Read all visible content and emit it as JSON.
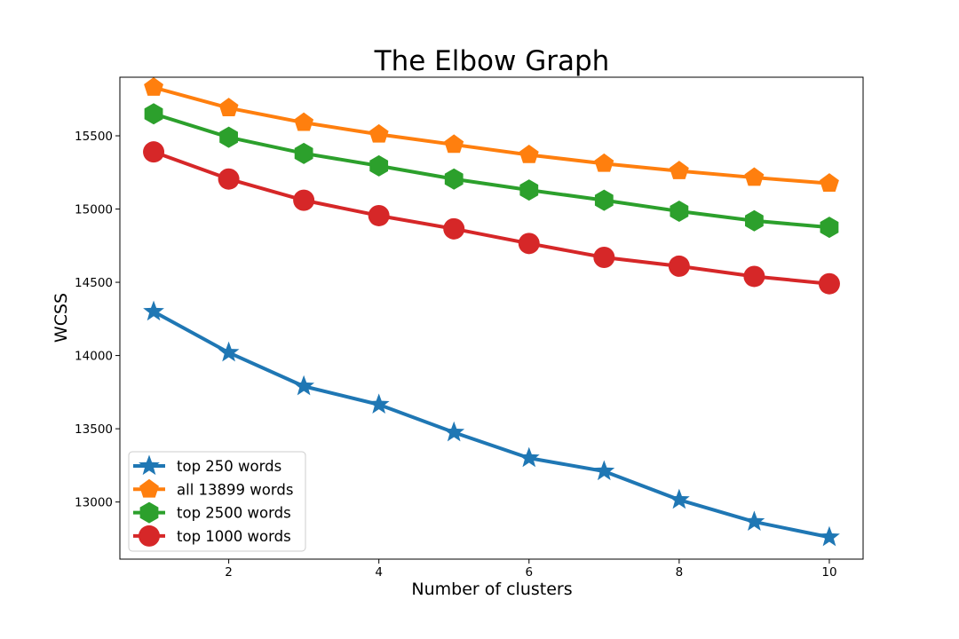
{
  "chart_data": {
    "type": "line",
    "title": "The Elbow Graph",
    "xlabel": "Number of clusters",
    "ylabel": "WCSS",
    "x": [
      1,
      2,
      3,
      4,
      5,
      6,
      7,
      8,
      9,
      10
    ],
    "xlim": [
      0.55,
      10.45
    ],
    "ylim": [
      12610,
      15900
    ],
    "xticks": [
      2,
      4,
      6,
      8,
      10
    ],
    "yticks": [
      13000,
      13500,
      14000,
      14500,
      15000,
      15500
    ],
    "grid": false,
    "legend_position": "lower-left",
    "series": [
      {
        "name": "top 250 words",
        "color": "#1f77b4",
        "marker": "star",
        "values": [
          14300,
          14020,
          13790,
          13665,
          13475,
          13300,
          13210,
          13015,
          12865,
          12760
        ]
      },
      {
        "name": "all 13899 words",
        "color": "#ff7f0e",
        "marker": "pentagon",
        "values": [
          15830,
          15690,
          15590,
          15510,
          15440,
          15370,
          15310,
          15260,
          15215,
          15175
        ]
      },
      {
        "name": "top 2500 words",
        "color": "#2ca02c",
        "marker": "hexagon",
        "values": [
          15650,
          15490,
          15380,
          15295,
          15205,
          15130,
          15060,
          14985,
          14920,
          14875
        ]
      },
      {
        "name": "top 1000 words",
        "color": "#d62728",
        "marker": "circle",
        "values": [
          15390,
          15205,
          15060,
          14955,
          14865,
          14765,
          14670,
          14610,
          14540,
          14490
        ]
      }
    ]
  }
}
